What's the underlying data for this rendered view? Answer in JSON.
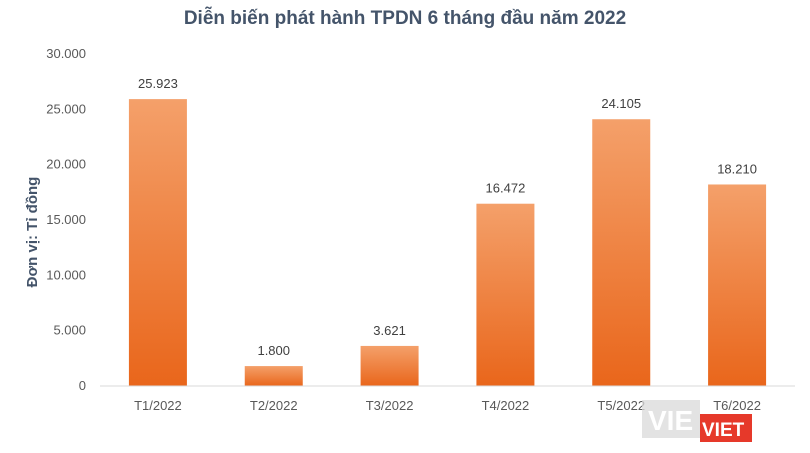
{
  "title": "Diễn biến phát hành TPDN 6 tháng đầu năm 2022",
  "logo_text": "VIET",
  "colors": {
    "bar_top": "#f4a06a",
    "bar_bottom": "#e9661b",
    "title": "#44546a",
    "axis": "#d9d9d9",
    "logo_bg": "#e6392a"
  },
  "chart_data": {
    "type": "bar",
    "title": "Diễn biến phát hành TPDN 6 tháng đầu năm 2022",
    "xlabel": "",
    "ylabel": "Đơn vị: Tỉ đồng",
    "categories": [
      "T1/2022",
      "T2/2022",
      "T3/2022",
      "T4/2022",
      "T5/2022",
      "T6/2022"
    ],
    "values": [
      25923,
      1800,
      3621,
      16472,
      24105,
      18210
    ],
    "value_labels": [
      "25.923",
      "1.800",
      "3.621",
      "16.472",
      "24.105",
      "18.210"
    ],
    "yticks": [
      0,
      5000,
      10000,
      15000,
      20000,
      25000,
      30000
    ],
    "ytick_labels": [
      "0",
      "5.000",
      "10.000",
      "15.000",
      "20.000",
      "25.000",
      "30.000"
    ],
    "ylim": [
      0,
      30000
    ],
    "grid": false,
    "legend": "none"
  }
}
